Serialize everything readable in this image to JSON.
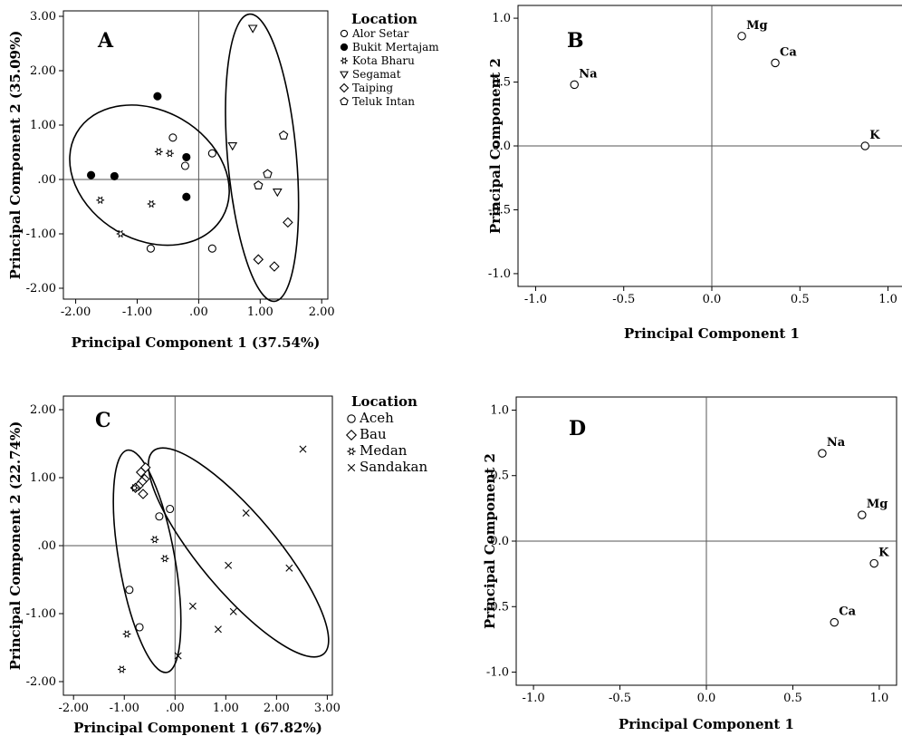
{
  "chart_data": [
    {
      "panel": "A",
      "type": "scatter",
      "xlabel": "Principal Component 1 (37.54%)",
      "ylabel": "Principal Component 2 (35.09%)",
      "xlim": [
        -2.2,
        2.1
      ],
      "ylim": [
        -2.2,
        3.1
      ],
      "xticks": [
        "-2.00",
        "-1.00",
        ".00",
        "1.00",
        "2.00"
      ],
      "xtick_values": [
        -2,
        -1,
        0,
        1,
        2
      ],
      "yticks": [
        "-2.00",
        "-1.00",
        ".00",
        "1.00",
        "2.00",
        "3.00"
      ],
      "ytick_values": [
        -2,
        -1,
        0,
        1,
        2,
        3
      ],
      "legend": {
        "title": "Location",
        "position": "right",
        "items": [
          {
            "label": "Alor Setar",
            "marker": "circle-open"
          },
          {
            "label": "Bukit Mertajam",
            "marker": "circle-filled"
          },
          {
            "label": "Kota Bharu",
            "marker": "star"
          },
          {
            "label": "Segamat",
            "marker": "triangle-down"
          },
          {
            "label": "Taiping",
            "marker": "diamond"
          },
          {
            "label": "Teluk Intan",
            "marker": "pentagon"
          }
        ]
      },
      "series": [
        {
          "name": "Alor Setar",
          "marker": "circle-open",
          "points": [
            [
              -0.42,
              0.77
            ],
            [
              -0.22,
              0.25
            ],
            [
              0.22,
              0.48
            ],
            [
              -0.78,
              -1.27
            ],
            [
              0.22,
              -1.27
            ]
          ]
        },
        {
          "name": "Bukit Mertajam",
          "marker": "circle-filled",
          "points": [
            [
              -0.67,
              1.53
            ],
            [
              -0.2,
              0.41
            ],
            [
              -1.75,
              0.08
            ],
            [
              -1.37,
              0.06
            ],
            [
              -0.2,
              -0.32
            ]
          ]
        },
        {
          "name": "Kota Bharu",
          "marker": "star",
          "points": [
            [
              -0.65,
              0.51
            ],
            [
              -0.47,
              0.48
            ],
            [
              -1.6,
              -0.38
            ],
            [
              -0.77,
              -0.45
            ],
            [
              -1.27,
              -1.0
            ]
          ]
        },
        {
          "name": "Segamat",
          "marker": "triangle-down",
          "points": [
            [
              0.88,
              2.78
            ],
            [
              0.55,
              0.62
            ],
            [
              1.28,
              -0.23
            ]
          ]
        },
        {
          "name": "Taiping",
          "marker": "diamond",
          "points": [
            [
              1.45,
              -0.79
            ],
            [
              0.97,
              -1.47
            ],
            [
              1.23,
              -1.6
            ]
          ]
        },
        {
          "name": "Teluk Intan",
          "marker": "pentagon",
          "points": [
            [
              1.38,
              0.81
            ],
            [
              1.12,
              0.1
            ],
            [
              0.97,
              -0.11
            ]
          ]
        }
      ],
      "ellipses": [
        {
          "cx": -0.8,
          "cy": 0.08,
          "rx": 1.05,
          "ry": 1.55,
          "angle_deg": 60
        },
        {
          "cx": 1.03,
          "cy": 0.4,
          "rx": 0.56,
          "ry": 2.65,
          "angle_deg": 5
        }
      ],
      "grid": false
    },
    {
      "panel": "B",
      "type": "scatter",
      "xlabel": "Principal Component 1",
      "ylabel": "Principal Component 2",
      "xlim": [
        -1.1,
        1.1
      ],
      "ylim": [
        -1.1,
        1.1
      ],
      "xticks": [
        "-1.0",
        "-0.5",
        "0.0",
        "0.5",
        "1.0"
      ],
      "xtick_values": [
        -1,
        -0.5,
        0,
        0.5,
        1
      ],
      "yticks": [
        "-1.0",
        "-0.5",
        "0.0",
        "0.5",
        "1.0"
      ],
      "ytick_values": [
        -1,
        -0.5,
        0,
        0.5,
        1
      ],
      "points": [
        {
          "label": "Na",
          "x": -0.78,
          "y": 0.48
        },
        {
          "label": "Mg",
          "x": 0.17,
          "y": 0.86
        },
        {
          "label": "Ca",
          "x": 0.36,
          "y": 0.65
        },
        {
          "label": "K",
          "x": 0.87,
          "y": 0.0
        }
      ],
      "grid": false
    },
    {
      "panel": "C",
      "type": "scatter",
      "xlabel": "Principal Component 1 (67.82%)",
      "ylabel": "Principal Component 2 (22.74%)",
      "xlim": [
        -2.2,
        3.1
      ],
      "ylim": [
        -2.2,
        2.2
      ],
      "xticks": [
        "-2.00",
        "-1.00",
        ".00",
        "1.00",
        "2.00",
        "3.00"
      ],
      "xtick_values": [
        -2,
        -1,
        0,
        1,
        2,
        3
      ],
      "yticks": [
        "-2.00",
        "-1.00",
        ".00",
        "1.00",
        "2.00"
      ],
      "ytick_values": [
        -2,
        -1,
        0,
        1,
        2
      ],
      "legend": {
        "title": "Location",
        "position": "right",
        "items": [
          {
            "label": "Aceh",
            "marker": "circle-open"
          },
          {
            "label": "Bau",
            "marker": "diamond"
          },
          {
            "label": "Medan",
            "marker": "star"
          },
          {
            "label": "Sandakan",
            "marker": "x"
          }
        ]
      },
      "series": [
        {
          "name": "Aceh",
          "marker": "circle-open",
          "points": [
            [
              -0.1,
              0.54
            ],
            [
              -0.31,
              0.43
            ],
            [
              -0.9,
              -0.65
            ],
            [
              -0.7,
              -1.2
            ]
          ]
        },
        {
          "name": "Bau",
          "marker": "diamond",
          "points": [
            [
              -0.58,
              1.15
            ],
            [
              -0.67,
              1.08
            ],
            [
              -0.6,
              0.98
            ],
            [
              -0.65,
              0.94
            ],
            [
              -0.72,
              0.88
            ],
            [
              -0.78,
              0.85
            ],
            [
              -0.63,
              0.76
            ]
          ]
        },
        {
          "name": "Medan",
          "marker": "star",
          "points": [
            [
              -0.4,
              0.09
            ],
            [
              -0.2,
              -0.19
            ],
            [
              -0.95,
              -1.3
            ],
            [
              -1.05,
              -1.82
            ],
            [
              -0.8,
              0.85
            ]
          ]
        },
        {
          "name": "Sandakan",
          "marker": "x",
          "points": [
            [
              2.52,
              1.42
            ],
            [
              1.4,
              0.48
            ],
            [
              2.25,
              -0.33
            ],
            [
              1.05,
              -0.29
            ],
            [
              0.35,
              -0.89
            ],
            [
              1.15,
              -0.97
            ],
            [
              0.85,
              -1.23
            ],
            [
              0.06,
              -1.62
            ]
          ]
        }
      ],
      "ellipses": [
        {
          "cx": -0.55,
          "cy": -0.23,
          "rx": 0.55,
          "ry": 1.66,
          "angle_deg": 10
        },
        {
          "cx": 1.25,
          "cy": -0.1,
          "rx": 0.76,
          "ry": 1.95,
          "angle_deg": 40
        }
      ],
      "grid": false
    },
    {
      "panel": "D",
      "type": "scatter",
      "xlabel": "Principal Component 1",
      "ylabel": "Principal Component 2",
      "xlim": [
        -1.1,
        1.1
      ],
      "ylim": [
        -1.1,
        1.1
      ],
      "xticks": [
        "-1.0",
        "-0.5",
        "0.0",
        "0.5",
        "1.0"
      ],
      "xtick_values": [
        -1,
        -0.5,
        0,
        0.5,
        1
      ],
      "yticks": [
        "-1.0",
        "-0.5",
        "0.0",
        "0.5",
        "1.0"
      ],
      "ytick_values": [
        -1,
        -0.5,
        0,
        0.5,
        1
      ],
      "points": [
        {
          "label": "Na",
          "x": 0.67,
          "y": 0.67
        },
        {
          "label": "Mg",
          "x": 0.9,
          "y": 0.2
        },
        {
          "label": "K",
          "x": 0.97,
          "y": -0.17
        },
        {
          "label": "Ca",
          "x": 0.74,
          "y": -0.62
        }
      ],
      "grid": false
    }
  ]
}
